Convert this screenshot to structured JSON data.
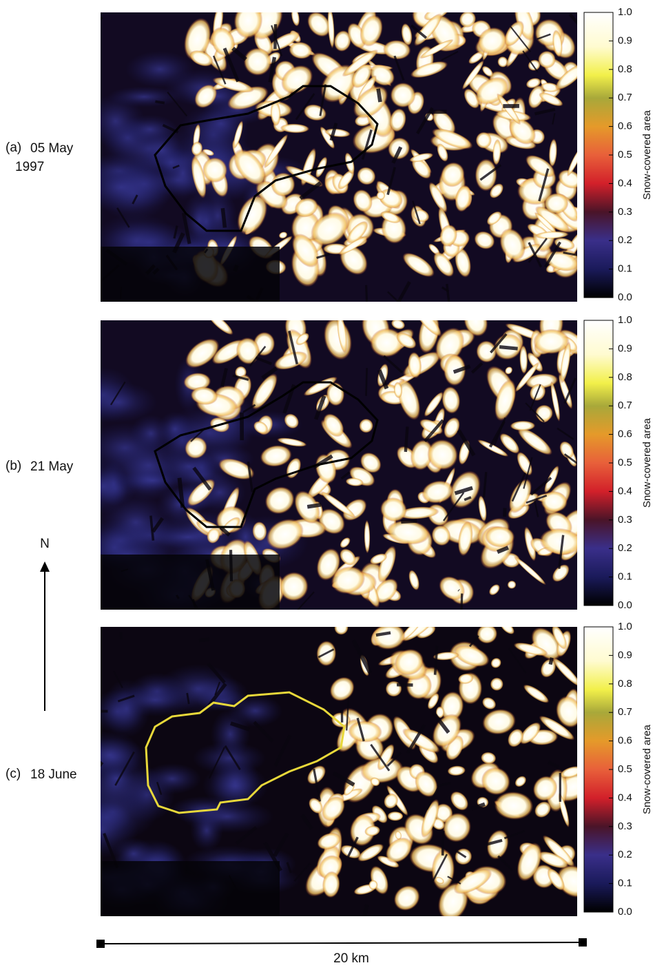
{
  "panels": [
    {
      "letter": "(a)",
      "date": "05 May",
      "year": "1997"
    },
    {
      "letter": "(b)",
      "date": "21 May"
    },
    {
      "letter": "(c)",
      "date": "18 June"
    }
  ],
  "colorbar": {
    "title": "Snow-covered area",
    "ticks": [
      "1.0",
      "0.9",
      "0.8",
      "0.7",
      "0.6",
      "0.5",
      "0.4",
      "0.3",
      "0.2",
      "0.1",
      "0.0"
    ]
  },
  "north": "N",
  "scale_bar": "20 km"
}
